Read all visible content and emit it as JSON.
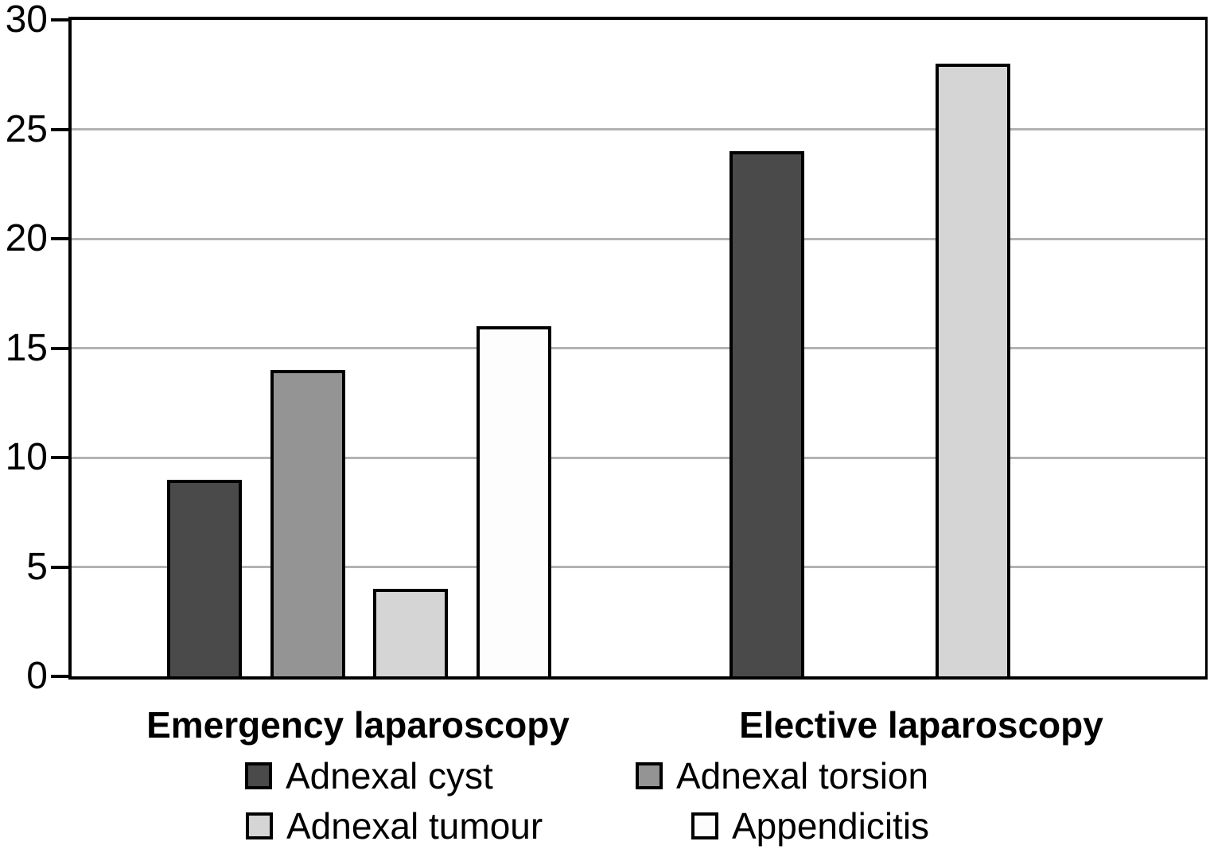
{
  "chart_data": {
    "type": "bar",
    "title": "",
    "xlabel": "",
    "ylabel": "",
    "categories": [
      "Emergency laparoscopy",
      "Elective laparoscopy"
    ],
    "series": [
      {
        "name": "Adnexal cyst",
        "color": "#4a4a4a",
        "values": [
          9,
          24
        ]
      },
      {
        "name": "Adnexal torsion",
        "color": "#949494",
        "values": [
          14,
          0
        ]
      },
      {
        "name": "Adnexal tumour",
        "color": "#d5d5d5",
        "values": [
          4,
          28
        ]
      },
      {
        "name": "Appendicitis",
        "color": "#fdfdfd",
        "values": [
          16,
          0
        ]
      }
    ],
    "ylim": [
      0,
      30
    ],
    "yticks": [
      0,
      5,
      10,
      15,
      20,
      25,
      30
    ],
    "grid": true,
    "gridline_color": "#b3b3b3",
    "axis_color": "#000000",
    "bar_border_color": "#000000",
    "legend_position": "bottom",
    "legend_rows": [
      [
        "Adnexal cyst",
        "Adnexal torsion"
      ],
      [
        "Adnexal tumour",
        "Appendicitis"
      ]
    ]
  }
}
